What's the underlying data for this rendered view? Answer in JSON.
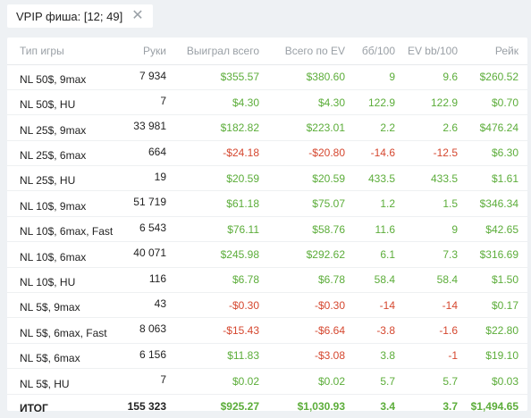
{
  "filter": {
    "label": "VPIP фиша: [12; 49]",
    "close_icon": "close-icon"
  },
  "table": {
    "headers": [
      "Тип игры",
      "Руки",
      "Выиграл всего",
      "Всего по EV",
      "бб/100",
      "EV bb/100",
      "Рейк"
    ],
    "rows": [
      {
        "type": "NL 50$, 9max",
        "hands": "7 934",
        "won": "$355.57",
        "ev": "$380.60",
        "bb100": "9",
        "evbb100": "9.6",
        "rake": "$260.52",
        "won_sign": "pos",
        "ev_sign": "pos",
        "bb_sign": "pos",
        "evbb_sign": "pos"
      },
      {
        "type": "NL 50$, HU",
        "hands": "7",
        "won": "$4.30",
        "ev": "$4.30",
        "bb100": "122.9",
        "evbb100": "122.9",
        "rake": "$0.70",
        "won_sign": "pos",
        "ev_sign": "pos",
        "bb_sign": "pos",
        "evbb_sign": "pos"
      },
      {
        "type": "NL 25$, 9max",
        "hands": "33 981",
        "won": "$182.82",
        "ev": "$223.01",
        "bb100": "2.2",
        "evbb100": "2.6",
        "rake": "$476.24",
        "won_sign": "pos",
        "ev_sign": "pos",
        "bb_sign": "pos",
        "evbb_sign": "pos"
      },
      {
        "type": "NL 25$, 6max",
        "hands": "664",
        "won": "-$24.18",
        "ev": "-$20.80",
        "bb100": "-14.6",
        "evbb100": "-12.5",
        "rake": "$6.30",
        "won_sign": "neg",
        "ev_sign": "neg",
        "bb_sign": "neg",
        "evbb_sign": "neg"
      },
      {
        "type": "NL 25$, HU",
        "hands": "19",
        "won": "$20.59",
        "ev": "$20.59",
        "bb100": "433.5",
        "evbb100": "433.5",
        "rake": "$1.61",
        "won_sign": "pos",
        "ev_sign": "pos",
        "bb_sign": "pos",
        "evbb_sign": "pos"
      },
      {
        "type": "NL 10$, 9max",
        "hands": "51 719",
        "won": "$61.18",
        "ev": "$75.07",
        "bb100": "1.2",
        "evbb100": "1.5",
        "rake": "$346.34",
        "won_sign": "pos",
        "ev_sign": "pos",
        "bb_sign": "pos",
        "evbb_sign": "pos"
      },
      {
        "type": "NL 10$, 6max, Fast",
        "hands": "6 543",
        "won": "$76.11",
        "ev": "$58.76",
        "bb100": "11.6",
        "evbb100": "9",
        "rake": "$42.65",
        "won_sign": "pos",
        "ev_sign": "pos",
        "bb_sign": "pos",
        "evbb_sign": "pos"
      },
      {
        "type": "NL 10$, 6max",
        "hands": "40 071",
        "won": "$245.98",
        "ev": "$292.62",
        "bb100": "6.1",
        "evbb100": "7.3",
        "rake": "$316.69",
        "won_sign": "pos",
        "ev_sign": "pos",
        "bb_sign": "pos",
        "evbb_sign": "pos"
      },
      {
        "type": "NL 10$, HU",
        "hands": "116",
        "won": "$6.78",
        "ev": "$6.78",
        "bb100": "58.4",
        "evbb100": "58.4",
        "rake": "$1.50",
        "won_sign": "pos",
        "ev_sign": "pos",
        "bb_sign": "pos",
        "evbb_sign": "pos"
      },
      {
        "type": "NL 5$, 9max",
        "hands": "43",
        "won": "-$0.30",
        "ev": "-$0.30",
        "bb100": "-14",
        "evbb100": "-14",
        "rake": "$0.17",
        "won_sign": "neg",
        "ev_sign": "neg",
        "bb_sign": "neg",
        "evbb_sign": "neg"
      },
      {
        "type": "NL 5$, 6max, Fast",
        "hands": "8 063",
        "won": "-$15.43",
        "ev": "-$6.64",
        "bb100": "-3.8",
        "evbb100": "-1.6",
        "rake": "$22.80",
        "won_sign": "neg",
        "ev_sign": "neg",
        "bb_sign": "neg",
        "evbb_sign": "neg"
      },
      {
        "type": "NL 5$, 6max",
        "hands": "6 156",
        "won": "$11.83",
        "ev": "-$3.08",
        "bb100": "3.8",
        "evbb100": "-1",
        "rake": "$19.10",
        "won_sign": "pos",
        "ev_sign": "neg",
        "bb_sign": "pos",
        "evbb_sign": "neg"
      },
      {
        "type": "NL 5$, HU",
        "hands": "7",
        "won": "$0.02",
        "ev": "$0.02",
        "bb100": "5.7",
        "evbb100": "5.7",
        "rake": "$0.03",
        "won_sign": "pos",
        "ev_sign": "pos",
        "bb_sign": "pos",
        "evbb_sign": "pos"
      }
    ],
    "total": {
      "type": "ИТОГ",
      "hands": "155 323",
      "won": "$925.27",
      "ev": "$1,030.93",
      "bb100": "3.4",
      "evbb100": "3.7",
      "rake": "$1,494.65"
    }
  },
  "colors": {
    "positive": "#5cad3a",
    "negative": "#d5472f",
    "header_text": "#9aa0a6",
    "background": "#eef1f4"
  }
}
